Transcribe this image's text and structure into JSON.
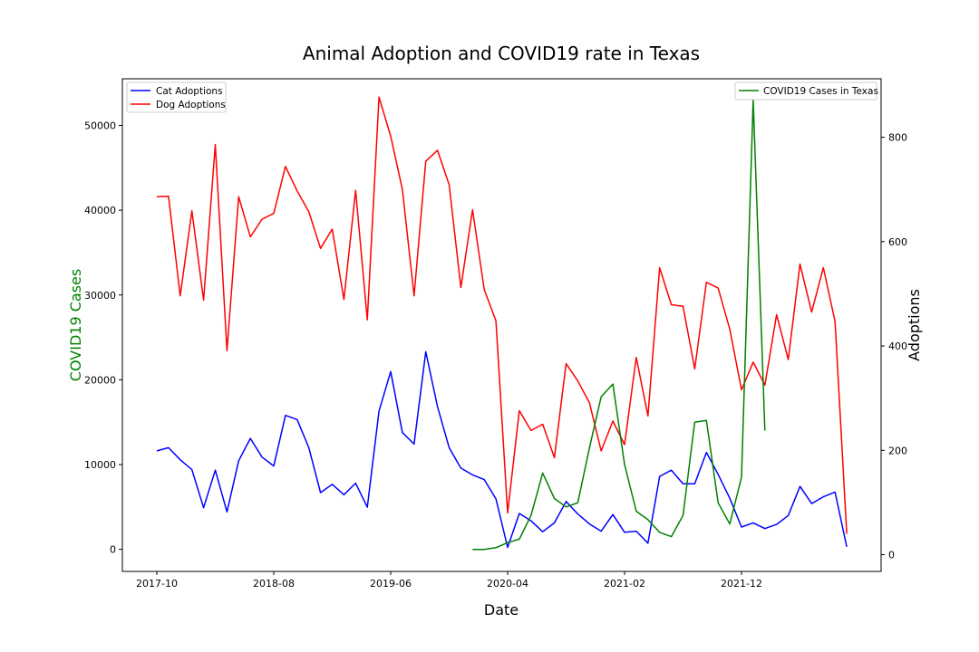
{
  "chart_data": {
    "type": "line",
    "title": "Animal Adoption and COVID19 rate in Texas",
    "xlabel": "Date",
    "ylabel_left": "COVID19 Cases",
    "ylabel_right": "Adoptions",
    "xticks": [
      "2017-10",
      "2018-08",
      "2019-06",
      "2020-04",
      "2021-02",
      "2021-12"
    ],
    "yticks_left": [
      "0",
      "10000",
      "20000",
      "30000",
      "40000",
      "50000"
    ],
    "yticks_right": [
      "0",
      "200",
      "400",
      "600",
      "800"
    ],
    "ylim_left": [
      -2600,
      55500
    ],
    "ylim_right": [
      -32,
      912
    ],
    "grid": false,
    "legend_left_placement": "top-left",
    "legend_right_placement": "top-right",
    "colors": {
      "cat": "#0000ff",
      "dog": "#ff0000",
      "covid": "#008000"
    },
    "months": [
      "2017-10",
      "2017-11",
      "2017-12",
      "2018-01",
      "2018-02",
      "2018-03",
      "2018-04",
      "2018-05",
      "2018-06",
      "2018-07",
      "2018-08",
      "2018-09",
      "2018-10",
      "2018-11",
      "2018-12",
      "2019-01",
      "2019-02",
      "2019-03",
      "2019-04",
      "2019-05",
      "2019-06",
      "2019-07",
      "2019-08",
      "2019-09",
      "2019-10",
      "2019-11",
      "2019-12",
      "2020-01",
      "2020-02",
      "2020-03",
      "2020-04",
      "2020-05",
      "2020-06",
      "2020-07",
      "2020-08",
      "2020-09",
      "2020-10",
      "2020-11",
      "2020-12",
      "2021-01",
      "2021-02",
      "2021-03",
      "2021-04",
      "2021-05",
      "2021-06",
      "2021-07",
      "2021-08",
      "2021-09",
      "2021-10",
      "2021-11",
      "2021-12",
      "2022-01",
      "2022-02",
      "2022-03",
      "2022-04",
      "2022-05",
      "2022-06",
      "2022-07",
      "2022-08",
      "2022-09",
      "2022-10"
    ],
    "series": [
      {
        "name": "Cat Adoptions",
        "axis": "right",
        "x_start": "2017-10",
        "values": [
          199,
          205,
          182,
          163,
          90,
          162,
          82,
          180,
          223,
          187,
          170,
          267,
          259,
          205,
          119,
          135,
          115,
          137,
          91,
          275,
          351,
          234,
          212,
          389,
          284,
          205,
          166,
          153,
          144,
          107,
          14,
          79,
          65,
          44,
          61,
          102,
          78,
          59,
          45,
          77,
          43,
          45,
          22,
          150,
          162,
          136,
          136,
          196,
          154,
          108,
          53,
          61,
          50,
          58,
          75,
          131,
          98,
          111,
          120,
          15
        ]
      },
      {
        "name": "Dog Adoptions",
        "axis": "right",
        "x_start": "2017-10",
        "values": [
          686,
          687,
          496,
          659,
          488,
          786,
          391,
          686,
          609,
          643,
          654,
          744,
          697,
          657,
          587,
          624,
          489,
          698,
          450,
          877,
          802,
          700,
          496,
          754,
          775,
          709,
          512,
          661,
          508,
          448,
          80,
          276,
          238,
          250,
          186,
          366,
          333,
          291,
          199,
          256,
          211,
          378,
          266,
          550,
          479,
          476,
          356,
          522,
          511,
          432,
          316,
          369,
          325,
          460,
          374,
          557,
          465,
          550,
          447,
          40
        ]
      },
      {
        "name": "COVID19 Cases in Texas",
        "axis": "left",
        "x_start": "2020-01",
        "values": [
          0,
          0,
          200,
          800,
          1200,
          4000,
          9000,
          6000,
          5000,
          5500,
          12000,
          18000,
          19500,
          10000,
          4500,
          3500,
          2000,
          1500,
          4000,
          15000,
          15200,
          5500,
          3000,
          8500,
          53000,
          14000
        ]
      }
    ]
  }
}
